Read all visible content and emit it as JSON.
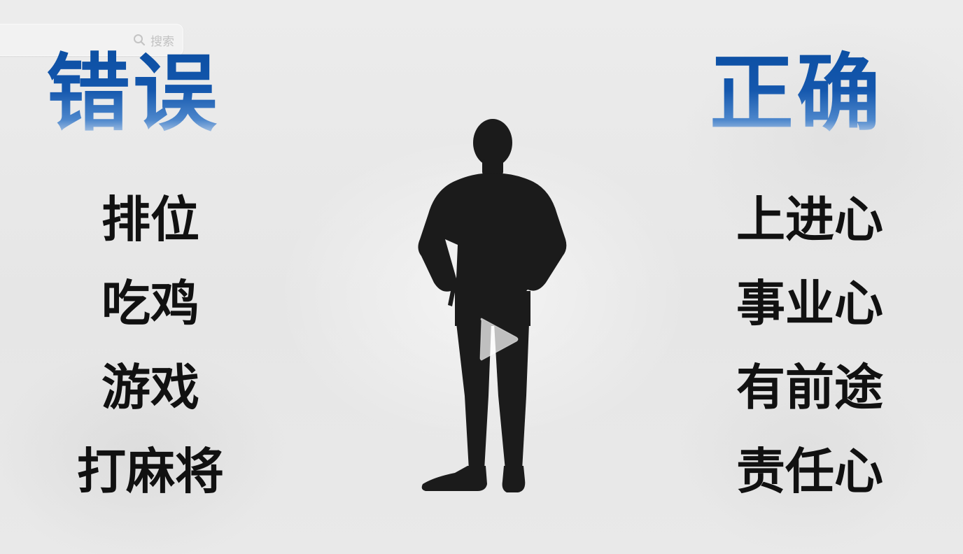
{
  "search": {
    "label": "搜索",
    "icon": "search-icon"
  },
  "headings": {
    "wrong": "错误",
    "right": "正确"
  },
  "wrong_items": [
    "排位",
    "吃鸡",
    "游戏",
    "打麻将"
  ],
  "right_items": [
    "上进心",
    "事业心",
    "有前途",
    "责任心"
  ],
  "figure": {
    "icon": "person-silhouette-icon"
  },
  "player": {
    "icon": "play-icon"
  },
  "colors": {
    "heading_blue": "#1457ad",
    "text_black": "#111111",
    "background": "#e9e9e9"
  }
}
